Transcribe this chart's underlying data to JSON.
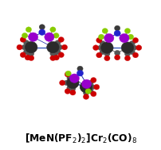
{
  "title_formatted": "[MeN(PF$_2$)$_2$]Cr$_2$(CO)$_8$",
  "background_color": "#ffffff",
  "fig_width": 2.03,
  "fig_height": 1.89,
  "dpi": 100,
  "atom_colors": {
    "Cr": "#2a2a2a",
    "O": "#cc0000",
    "C": "#555555",
    "P": "#9900cc",
    "F": "#88cc00",
    "N": "#2222cc",
    "Me": "#3a3a3a"
  },
  "bond_color": "#3355bb",
  "bond_lw": 0.7,
  "r_Cr": 0.038,
  "r_P": 0.03,
  "r_N": 0.02,
  "r_C": 0.018,
  "r_O": 0.018,
  "r_F": 0.018,
  "r_Me": 0.018
}
